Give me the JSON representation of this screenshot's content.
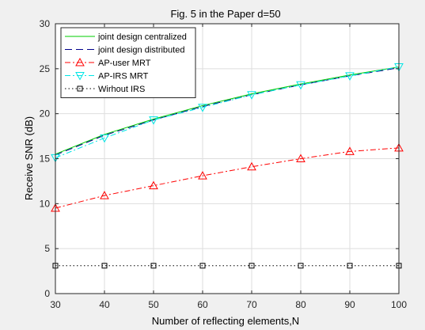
{
  "chart_data": {
    "type": "line",
    "title": "Fig. 5 in the Paper d=50",
    "xlabel": "Number of reflecting elements,N",
    "ylabel": "Receive SNR (dB)",
    "xlim": [
      30,
      100
    ],
    "ylim": [
      0,
      30
    ],
    "xticks": [
      30,
      40,
      50,
      60,
      70,
      80,
      90,
      100
    ],
    "yticks": [
      0,
      5,
      10,
      15,
      20,
      25,
      30
    ],
    "grid": true,
    "legend_position": "top-left",
    "x": [
      30,
      40,
      50,
      60,
      70,
      80,
      90,
      100
    ],
    "series": [
      {
        "name": "joint design centralized",
        "color": "#00cc00",
        "style": "solid",
        "marker": "none",
        "values": [
          15.5,
          17.7,
          19.4,
          20.9,
          22.2,
          23.3,
          24.3,
          25.2
        ]
      },
      {
        "name": "joint design distributed",
        "color": "#00008b",
        "style": "dashed",
        "marker": "none",
        "values": [
          15.4,
          17.6,
          19.3,
          20.8,
          22.1,
          23.2,
          24.2,
          25.1
        ]
      },
      {
        "name": "AP-user MRT",
        "color": "#ff0000",
        "style": "dashdot",
        "marker": "triangle-up",
        "values": [
          9.5,
          10.9,
          12.0,
          13.1,
          14.1,
          15.0,
          15.8,
          16.2
        ]
      },
      {
        "name": "AP-IRS MRT",
        "color": "#00e5e5",
        "style": "dashdot",
        "marker": "triangle-down",
        "values": [
          15.1,
          17.3,
          19.3,
          20.7,
          22.1,
          23.2,
          24.2,
          25.2
        ]
      },
      {
        "name": "Wirhout IRS",
        "color": "#000000",
        "style": "dotted",
        "marker": "square",
        "values": [
          3.1,
          3.1,
          3.1,
          3.1,
          3.1,
          3.1,
          3.1,
          3.1
        ]
      }
    ]
  }
}
